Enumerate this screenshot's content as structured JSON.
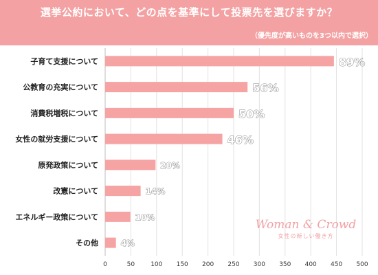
{
  "header": {
    "title": "選挙公約において、どの点を基準にして投票先を選びますか？",
    "subtitle": "（優先度が高いものを3つ以内で選択）"
  },
  "chart_data": {
    "type": "bar",
    "orientation": "horizontal",
    "categories": [
      "子育て支援について",
      "公教育の充実について",
      "消費税増税について",
      "女性の就労支援について",
      "原発政策について",
      "改憲について",
      "エネルギー政策について",
      "その他"
    ],
    "values": [
      445,
      277,
      250,
      228,
      98,
      69,
      49,
      21
    ],
    "value_labels": [
      "89%",
      "56%",
      "50%",
      "46%",
      "20%",
      "14%",
      "10%",
      "4%"
    ],
    "xlim": [
      0,
      500
    ],
    "xticks": [
      0,
      50,
      100,
      150,
      200,
      250,
      300,
      350,
      400,
      450,
      500
    ],
    "grid": true,
    "bar_color": "#f6a3a4"
  },
  "logo": {
    "main": "Woman & Crowd",
    "sub": "女性の新しい働き方"
  }
}
